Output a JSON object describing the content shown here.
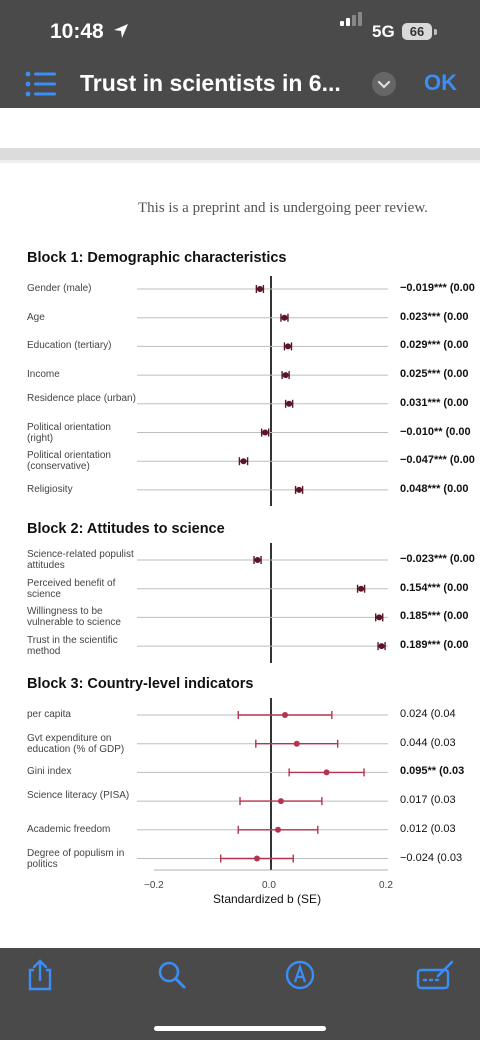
{
  "status": {
    "time": "10:48",
    "network": "5G",
    "battery": "66"
  },
  "nav": {
    "title": "Trust in scientists in 6...",
    "ok_label": "OK"
  },
  "doc": {
    "preprint_note": "This is a preprint and is undergoing peer review."
  },
  "chart_data": {
    "type": "forest",
    "xlabel": "Standardized b (SE)",
    "xlim": [
      -0.2,
      0.2
    ],
    "xticks": [
      "−0.2",
      "0.0",
      "0.2"
    ],
    "blocks": [
      {
        "title": "Block 1: Demographic characteristics",
        "rows": [
          {
            "label": "Gender (male)",
            "estimate": -0.019,
            "ci": [
              -0.025,
              -0.013
            ],
            "text": "−0.019*** (0.00",
            "bold": true
          },
          {
            "label": "Age",
            "estimate": 0.023,
            "ci": [
              0.017,
              0.029
            ],
            "text": "0.023*** (0.00",
            "bold": true
          },
          {
            "label": "Education (tertiary)",
            "estimate": 0.029,
            "ci": [
              0.023,
              0.035
            ],
            "text": "0.029*** (0.00",
            "bold": true
          },
          {
            "label": "Income",
            "estimate": 0.025,
            "ci": [
              0.019,
              0.031
            ],
            "text": "0.025*** (0.00",
            "bold": true
          },
          {
            "label": "Residence place (urban)",
            "estimate": 0.031,
            "ci": [
              0.025,
              0.037
            ],
            "text": "0.031*** (0.00",
            "bold": true
          },
          {
            "label": "Political orientation (right)",
            "estimate": -0.01,
            "ci": [
              -0.016,
              -0.004
            ],
            "text": "−0.010** (0.00",
            "bold": true
          },
          {
            "label": "Political orientation (conservative)",
            "estimate": -0.047,
            "ci": [
              -0.054,
              -0.04
            ],
            "text": "−0.047*** (0.00",
            "bold": true
          },
          {
            "label": "Religiosity",
            "estimate": 0.048,
            "ci": [
              0.042,
              0.054
            ],
            "text": "0.048*** (0.00",
            "bold": true
          }
        ]
      },
      {
        "title": "Block 2: Attitudes to science",
        "rows": [
          {
            "label": "Science-related populist attitudes",
            "estimate": -0.023,
            "ci": [
              -0.029,
              -0.017
            ],
            "text": "−0.023*** (0.00",
            "bold": true
          },
          {
            "label": "Perceived benefit of science",
            "estimate": 0.154,
            "ci": [
              0.148,
              0.16
            ],
            "text": "0.154*** (0.00",
            "bold": true
          },
          {
            "label": "Willingness to be vulnerable to science",
            "estimate": 0.185,
            "ci": [
              0.179,
              0.191
            ],
            "text": "0.185*** (0.00",
            "bold": true
          },
          {
            "label": "Trust in the scientific method",
            "estimate": 0.189,
            "ci": [
              0.183,
              0.195
            ],
            "text": "0.189*** (0.00",
            "bold": true
          }
        ]
      },
      {
        "title": "Block 3: Country-level indicators",
        "rows": [
          {
            "label": "per capita",
            "estimate": 0.024,
            "ci": [
              -0.056,
              0.104
            ],
            "text": "0.024 (0.04",
            "bold": false
          },
          {
            "label": "Gvt expenditure on education (% of GDP)",
            "estimate": 0.044,
            "ci": [
              -0.026,
              0.114
            ],
            "text": "0.044 (0.03",
            "bold": false
          },
          {
            "label": "Gini index",
            "estimate": 0.095,
            "ci": [
              0.031,
              0.159
            ],
            "text": "0.095** (0.03",
            "bold": true
          },
          {
            "label": "Science literacy (PISA)",
            "estimate": 0.017,
            "ci": [
              -0.053,
              0.087
            ],
            "text": "0.017 (0.03",
            "bold": false
          },
          {
            "label": "Academic freedom",
            "estimate": 0.012,
            "ci": [
              -0.056,
              0.08
            ],
            "text": "0.012 (0.03",
            "bold": false
          },
          {
            "label": "Degree of populism in politics",
            "estimate": -0.024,
            "ci": [
              -0.086,
              0.038
            ],
            "text": "−0.024 (0.03",
            "bold": false
          }
        ]
      }
    ],
    "colors": {
      "point": "#5a1626",
      "ci_block3": "#b5334f",
      "axis": "#000000",
      "gridline": "#bdbdbd"
    }
  }
}
